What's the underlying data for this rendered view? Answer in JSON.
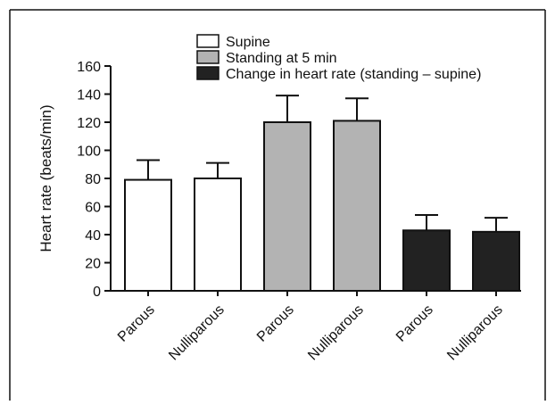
{
  "chart_data": {
    "type": "bar",
    "ylabel": "Heart rate (beats/min)",
    "xlabel": "",
    "title": "",
    "ylim": [
      0,
      160
    ],
    "yticks": [
      0,
      20,
      40,
      60,
      80,
      100,
      120,
      140,
      160
    ],
    "categories": [
      "Parous",
      "Nulliparous",
      "Parous",
      "Nulliparous",
      "Parous",
      "Nulliparous"
    ],
    "legend_position": "top-right",
    "series": [
      {
        "name": "Supine",
        "color": "#ffffff",
        "values": [
          79,
          80,
          null,
          null,
          null,
          null
        ],
        "errors": [
          14,
          11,
          null,
          null,
          null,
          null
        ]
      },
      {
        "name": "Standing at 5 min",
        "color": "#b3b3b3",
        "values": [
          null,
          null,
          120,
          121,
          null,
          null
        ],
        "errors": [
          null,
          null,
          19,
          16,
          null,
          null
        ]
      },
      {
        "name": "Change in heart rate (standing – supine)",
        "color": "#222222",
        "values": [
          null,
          null,
          null,
          null,
          43,
          42
        ],
        "errors": [
          null,
          null,
          null,
          null,
          11,
          10
        ]
      }
    ],
    "bars": [
      {
        "category": "Parous",
        "series": "Supine",
        "value": 79,
        "error": 14,
        "color": "#ffffff"
      },
      {
        "category": "Nulliparous",
        "series": "Supine",
        "value": 80,
        "error": 11,
        "color": "#ffffff"
      },
      {
        "category": "Parous",
        "series": "Standing at 5 min",
        "value": 120,
        "error": 19,
        "color": "#b3b3b3"
      },
      {
        "category": "Nulliparous",
        "series": "Standing at 5 min",
        "value": 121,
        "error": 16,
        "color": "#b3b3b3"
      },
      {
        "category": "Parous",
        "series": "Change in heart rate (standing – supine)",
        "value": 43,
        "error": 11,
        "color": "#222222"
      },
      {
        "category": "Nulliparous",
        "series": "Change in heart rate (standing – supine)",
        "value": 42,
        "error": 10,
        "color": "#222222"
      }
    ]
  }
}
